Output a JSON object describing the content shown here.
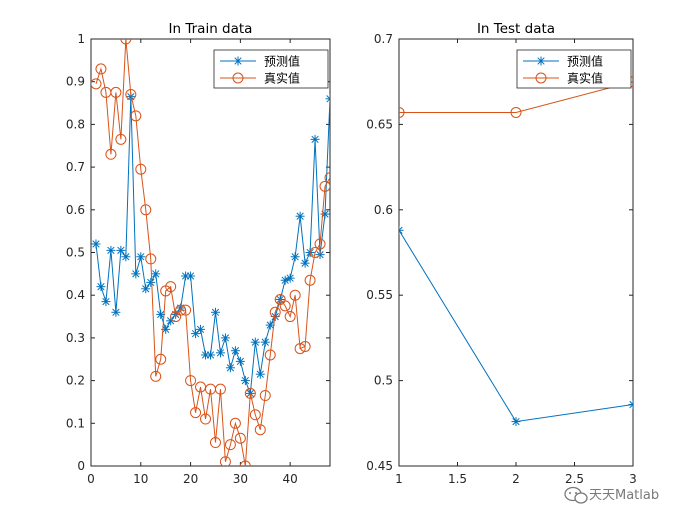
{
  "chart_data": [
    {
      "type": "line",
      "title": "In Train data",
      "xlim": [
        0,
        48
      ],
      "ylim": [
        0,
        1
      ],
      "xticks": [
        0,
        10,
        20,
        30,
        40
      ],
      "yticks": [
        0,
        0.1,
        0.2,
        0.3,
        0.4,
        0.5,
        0.6,
        0.7,
        0.8,
        0.9,
        1
      ],
      "ytick_labels": [
        "0",
        "0.1",
        "0.2",
        "0.3",
        "0.4",
        "0.5",
        "0.6",
        "0.7",
        "0.8",
        "0.9",
        "1"
      ],
      "grid": false,
      "legend_position": "top-right",
      "x": [
        1,
        2,
        3,
        4,
        5,
        6,
        7,
        8,
        9,
        10,
        11,
        12,
        13,
        14,
        15,
        16,
        17,
        18,
        19,
        20,
        21,
        22,
        23,
        24,
        25,
        26,
        27,
        28,
        29,
        30,
        31,
        32,
        33,
        34,
        35,
        36,
        37,
        38,
        39,
        40,
        41,
        42,
        43,
        44,
        45,
        46,
        47,
        48
      ],
      "series": [
        {
          "name": "预测值",
          "color": "#0072BD",
          "marker": "asterisk",
          "values": [
            0.52,
            0.42,
            0.385,
            0.505,
            0.36,
            0.505,
            0.49,
            0.865,
            0.45,
            0.49,
            0.415,
            0.43,
            0.45,
            0.355,
            0.32,
            0.34,
            0.355,
            0.37,
            0.445,
            0.445,
            0.31,
            0.32,
            0.26,
            0.26,
            0.36,
            0.265,
            0.3,
            0.23,
            0.27,
            0.245,
            0.2,
            0.17,
            0.29,
            0.215,
            0.29,
            0.33,
            0.35,
            0.39,
            0.435,
            0.44,
            0.49,
            0.585,
            0.475,
            0.5,
            0.765,
            0.495,
            0.59,
            0.86
          ]
        },
        {
          "name": "真实值",
          "color": "#D95319",
          "marker": "circle",
          "values": [
            0.895,
            0.93,
            0.875,
            0.73,
            0.875,
            0.765,
            1.0,
            0.87,
            0.82,
            0.695,
            0.6,
            0.485,
            0.21,
            0.25,
            0.41,
            0.42,
            0.35,
            0.365,
            0.365,
            0.2,
            0.125,
            0.185,
            0.11,
            0.18,
            0.055,
            0.18,
            0.01,
            0.05,
            0.1,
            0.065,
            0.0,
            0.17,
            0.12,
            0.085,
            0.165,
            0.26,
            0.36,
            0.39,
            0.375,
            0.35,
            0.4,
            0.275,
            0.28,
            0.435,
            0.5,
            0.52,
            0.655,
            0.675
          ]
        }
      ]
    },
    {
      "type": "line",
      "title": "In Test data",
      "xlim": [
        1,
        3
      ],
      "ylim": [
        0.45,
        0.7
      ],
      "xticks": [
        1,
        1.5,
        2,
        2.5,
        3
      ],
      "xtick_labels": [
        "1",
        "1.5",
        "2",
        "2.5",
        "3"
      ],
      "yticks": [
        0.45,
        0.5,
        0.55,
        0.6,
        0.65,
        0.7
      ],
      "ytick_labels": [
        "0.45",
        "0.5",
        "0.55",
        "0.6",
        "0.65",
        "0.7"
      ],
      "grid": false,
      "legend_position": "top-right",
      "x": [
        1,
        2,
        3
      ],
      "series": [
        {
          "name": "预测值",
          "color": "#0072BD",
          "marker": "asterisk",
          "values": [
            0.588,
            0.476,
            0.486
          ]
        },
        {
          "name": "真实值",
          "color": "#D95319",
          "marker": "circle",
          "values": [
            0.657,
            0.657,
            0.675
          ]
        }
      ]
    }
  ],
  "watermark": {
    "text": "天天Matlab",
    "icon": "wechat-icon",
    "color": "#7a7a7a"
  }
}
